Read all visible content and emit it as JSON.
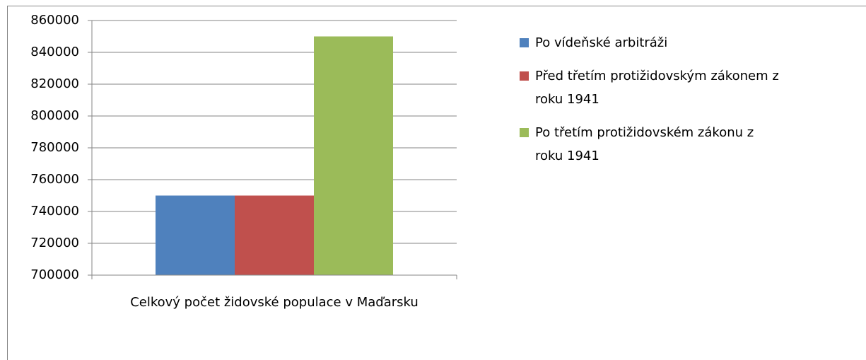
{
  "chart_data": {
    "type": "bar",
    "categories": [
      "Celkový počet židovské populace v Maďarsku"
    ],
    "series": [
      {
        "name": "Po vídeňské arbitráži",
        "color": "#4f81bd",
        "values": [
          750000
        ]
      },
      {
        "name": "Před třetím protižidovským zákonem z roku 1941",
        "color": "#c0504d",
        "values": [
          750000
        ]
      },
      {
        "name": "Po třetím protižidovském zákonu z roku 1941",
        "color": "#9bbb59",
        "values": [
          850000
        ]
      }
    ],
    "ylim": [
      700000,
      860000
    ],
    "yticks": [
      700000,
      720000,
      740000,
      760000,
      780000,
      800000,
      820000,
      840000,
      860000
    ],
    "grid": true,
    "legend": "right"
  }
}
